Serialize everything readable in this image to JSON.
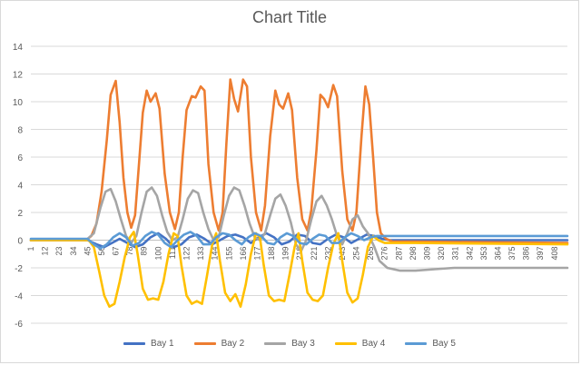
{
  "chart_data": {
    "type": "line",
    "title": "Chart Title",
    "xlabel": "",
    "ylabel": "",
    "ylim": [
      -6,
      14
    ],
    "yticks": [
      -6,
      -4,
      -2,
      0,
      2,
      4,
      6,
      8,
      10,
      12,
      14
    ],
    "x_range": [
      1,
      418
    ],
    "xtick_labels": [
      "1",
      "12",
      "23",
      "34",
      "45",
      "56",
      "67",
      "78",
      "89",
      "100",
      "111",
      "122",
      "133",
      "144",
      "155",
      "166",
      "177",
      "188",
      "199",
      "210",
      "221",
      "232",
      "243",
      "254",
      "265",
      "276",
      "287",
      "298",
      "309",
      "320",
      "331",
      "342",
      "353",
      "364",
      "375",
      "386",
      "397",
      "408"
    ],
    "grid": true,
    "legend_position": "bottom",
    "series": [
      {
        "name": "Bay 1",
        "color": "#4472c4",
        "points": [
          [
            1,
            0
          ],
          [
            45,
            0
          ],
          [
            52,
            -0.3
          ],
          [
            58,
            -0.5
          ],
          [
            64,
            -0.2
          ],
          [
            70,
            0.1
          ],
          [
            76,
            -0.2
          ],
          [
            82,
            -0.5
          ],
          [
            88,
            -0.3
          ],
          [
            94,
            0.2
          ],
          [
            100,
            0.5
          ],
          [
            106,
            0.1
          ],
          [
            112,
            -0.5
          ],
          [
            118,
            -0.3
          ],
          [
            124,
            0.2
          ],
          [
            130,
            0.4
          ],
          [
            136,
            0.1
          ],
          [
            142,
            -0.3
          ],
          [
            148,
            0
          ],
          [
            154,
            0.3
          ],
          [
            160,
            0.4
          ],
          [
            166,
            0.2
          ],
          [
            172,
            -0.2
          ],
          [
            178,
            0.2
          ],
          [
            184,
            0.5
          ],
          [
            190,
            0.2
          ],
          [
            196,
            -0.3
          ],
          [
            202,
            -0.1
          ],
          [
            208,
            0.4
          ],
          [
            214,
            0.3
          ],
          [
            220,
            -0.2
          ],
          [
            226,
            -0.3
          ],
          [
            232,
            0.1
          ],
          [
            238,
            0.4
          ],
          [
            244,
            0.2
          ],
          [
            250,
            -0.2
          ],
          [
            256,
            0.1
          ],
          [
            262,
            0.4
          ],
          [
            268,
            0.3
          ],
          [
            274,
            0.1
          ],
          [
            280,
            0
          ],
          [
            418,
            0
          ]
        ]
      },
      {
        "name": "Bay 2",
        "color": "#ed7d31",
        "points": [
          [
            1,
            0
          ],
          [
            44,
            0
          ],
          [
            48,
            0.3
          ],
          [
            52,
            1.2
          ],
          [
            56,
            3.5
          ],
          [
            60,
            7.2
          ],
          [
            63,
            10.5
          ],
          [
            67,
            11.5
          ],
          [
            70,
            8.5
          ],
          [
            73,
            4.5
          ],
          [
            76,
            2.0
          ],
          [
            79,
            0.9
          ],
          [
            82,
            1.8
          ],
          [
            85,
            5.5
          ],
          [
            88,
            9.2
          ],
          [
            91,
            10.8
          ],
          [
            94,
            10.0
          ],
          [
            98,
            10.6
          ],
          [
            101,
            9.5
          ],
          [
            105,
            4.8
          ],
          [
            109,
            2.0
          ],
          [
            113,
            0.8
          ],
          [
            116,
            2.0
          ],
          [
            119,
            6.0
          ],
          [
            122,
            9.4
          ],
          [
            126,
            10.4
          ],
          [
            129,
            10.3
          ],
          [
            133,
            11.1
          ],
          [
            136,
            10.8
          ],
          [
            139,
            5.5
          ],
          [
            143,
            2.0
          ],
          [
            147,
            0.7
          ],
          [
            150,
            2.0
          ],
          [
            153,
            7.0
          ],
          [
            156,
            11.6
          ],
          [
            159,
            10.2
          ],
          [
            162,
            9.3
          ],
          [
            166,
            11.6
          ],
          [
            169,
            11.1
          ],
          [
            172,
            6.0
          ],
          [
            176,
            2.0
          ],
          [
            180,
            0.7
          ],
          [
            183,
            2.5
          ],
          [
            187,
            7.5
          ],
          [
            191,
            10.8
          ],
          [
            194,
            9.8
          ],
          [
            197,
            9.5
          ],
          [
            201,
            10.6
          ],
          [
            204,
            9.4
          ],
          [
            208,
            4.5
          ],
          [
            212,
            1.5
          ],
          [
            216,
            0.7
          ],
          [
            219,
            2.2
          ],
          [
            223,
            6.5
          ],
          [
            226,
            10.5
          ],
          [
            229,
            10.2
          ],
          [
            232,
            9.6
          ],
          [
            236,
            11.2
          ],
          [
            239,
            10.4
          ],
          [
            243,
            5.0
          ],
          [
            247,
            1.5
          ],
          [
            251,
            0.7
          ],
          [
            254,
            2.0
          ],
          [
            258,
            7.5
          ],
          [
            261,
            11.1
          ],
          [
            264,
            9.8
          ],
          [
            267,
            6.0
          ],
          [
            270,
            2.0
          ],
          [
            273,
            0.5
          ],
          [
            277,
            0.1
          ],
          [
            282,
            -0.1
          ],
          [
            300,
            -0.1
          ],
          [
            418,
            -0.2
          ]
        ]
      },
      {
        "name": "Bay 3",
        "color": "#a5a5a5",
        "points": [
          [
            1,
            0
          ],
          [
            44,
            0
          ],
          [
            50,
            0.5
          ],
          [
            55,
            2.3
          ],
          [
            59,
            3.5
          ],
          [
            63,
            3.7
          ],
          [
            67,
            2.8
          ],
          [
            71,
            1.5
          ],
          [
            75,
            0.3
          ],
          [
            79,
            -0.2
          ],
          [
            83,
            0.3
          ],
          [
            87,
            2.0
          ],
          [
            91,
            3.5
          ],
          [
            95,
            3.8
          ],
          [
            99,
            3.2
          ],
          [
            103,
            1.8
          ],
          [
            107,
            0.6
          ],
          [
            111,
            0
          ],
          [
            115,
            0.2
          ],
          [
            119,
            1.5
          ],
          [
            123,
            3.0
          ],
          [
            127,
            3.6
          ],
          [
            131,
            3.4
          ],
          [
            135,
            2.0
          ],
          [
            139,
            0.8
          ],
          [
            143,
            0
          ],
          [
            147,
            0.2
          ],
          [
            151,
            1.8
          ],
          [
            155,
            3.2
          ],
          [
            159,
            3.8
          ],
          [
            163,
            3.6
          ],
          [
            167,
            2.5
          ],
          [
            171,
            1.2
          ],
          [
            175,
            0.2
          ],
          [
            179,
            0
          ],
          [
            183,
            0.5
          ],
          [
            187,
            1.8
          ],
          [
            191,
            3.0
          ],
          [
            195,
            3.3
          ],
          [
            199,
            2.5
          ],
          [
            203,
            1.3
          ],
          [
            207,
            -0.3
          ],
          [
            211,
            -0.8
          ],
          [
            215,
            0
          ],
          [
            219,
            1.5
          ],
          [
            223,
            2.8
          ],
          [
            227,
            3.2
          ],
          [
            231,
            2.5
          ],
          [
            235,
            1.5
          ],
          [
            239,
            0.3
          ],
          [
            243,
            -0.3
          ],
          [
            247,
            0.5
          ],
          [
            251,
            1.5
          ],
          [
            255,
            1.8
          ],
          [
            259,
            1.0
          ],
          [
            263,
            0.5
          ],
          [
            268,
            -0.5
          ],
          [
            272,
            -1.5
          ],
          [
            278,
            -2.0
          ],
          [
            288,
            -2.2
          ],
          [
            300,
            -2.2
          ],
          [
            315,
            -2.1
          ],
          [
            330,
            -2.0
          ],
          [
            350,
            -2.0
          ],
          [
            380,
            -2.0
          ],
          [
            400,
            -2.0
          ],
          [
            418,
            -2.0
          ]
        ]
      },
      {
        "name": "Bay 4",
        "color": "#ffc000",
        "points": [
          [
            1,
            0
          ],
          [
            46,
            0
          ],
          [
            50,
            -0.5
          ],
          [
            54,
            -2.2
          ],
          [
            58,
            -4.0
          ],
          [
            62,
            -4.8
          ],
          [
            66,
            -4.6
          ],
          [
            70,
            -3.0
          ],
          [
            74,
            -1.2
          ],
          [
            78,
            0.2
          ],
          [
            81,
            0.6
          ],
          [
            84,
            -1.0
          ],
          [
            88,
            -3.5
          ],
          [
            92,
            -4.3
          ],
          [
            96,
            -4.2
          ],
          [
            100,
            -4.3
          ],
          [
            104,
            -3.0
          ],
          [
            108,
            -1.0
          ],
          [
            112,
            0.5
          ],
          [
            115,
            0.3
          ],
          [
            118,
            -1.8
          ],
          [
            122,
            -4.0
          ],
          [
            126,
            -4.6
          ],
          [
            130,
            -4.4
          ],
          [
            134,
            -4.6
          ],
          [
            138,
            -2.5
          ],
          [
            142,
            -0.3
          ],
          [
            145,
            0.5
          ],
          [
            148,
            -1.5
          ],
          [
            152,
            -3.8
          ],
          [
            156,
            -4.4
          ],
          [
            160,
            -3.9
          ],
          [
            164,
            -4.8
          ],
          [
            168,
            -3.2
          ],
          [
            172,
            -1.0
          ],
          [
            176,
            0.5
          ],
          [
            179,
            0.2
          ],
          [
            182,
            -1.8
          ],
          [
            186,
            -4.0
          ],
          [
            190,
            -4.4
          ],
          [
            194,
            -4.3
          ],
          [
            198,
            -4.4
          ],
          [
            202,
            -2.5
          ],
          [
            206,
            -0.5
          ],
          [
            209,
            0.5
          ],
          [
            212,
            -1.5
          ],
          [
            216,
            -3.8
          ],
          [
            220,
            -4.3
          ],
          [
            224,
            -4.4
          ],
          [
            228,
            -4.0
          ],
          [
            232,
            -2.0
          ],
          [
            236,
            -0.3
          ],
          [
            240,
            0.5
          ],
          [
            243,
            -1.5
          ],
          [
            247,
            -3.8
          ],
          [
            251,
            -4.5
          ],
          [
            255,
            -4.2
          ],
          [
            259,
            -2.5
          ],
          [
            263,
            -0.5
          ],
          [
            267,
            0.3
          ],
          [
            271,
            0
          ],
          [
            276,
            -0.2
          ],
          [
            300,
            -0.2
          ],
          [
            418,
            -0.3
          ]
        ]
      },
      {
        "name": "Bay 5",
        "color": "#5b9bd5",
        "points": [
          [
            1,
            0.1
          ],
          [
            45,
            0.1
          ],
          [
            50,
            -0.3
          ],
          [
            55,
            -0.6
          ],
          [
            60,
            -0.3
          ],
          [
            65,
            0.2
          ],
          [
            70,
            0.5
          ],
          [
            75,
            0.2
          ],
          [
            80,
            -0.4
          ],
          [
            85,
            -0.2
          ],
          [
            90,
            0.3
          ],
          [
            95,
            0.6
          ],
          [
            100,
            0.4
          ],
          [
            105,
            -0.2
          ],
          [
            110,
            -0.5
          ],
          [
            115,
            0
          ],
          [
            120,
            0.4
          ],
          [
            125,
            0.6
          ],
          [
            130,
            0.3
          ],
          [
            135,
            -0.3
          ],
          [
            140,
            -0.3
          ],
          [
            145,
            0.2
          ],
          [
            150,
            0.5
          ],
          [
            155,
            0.4
          ],
          [
            160,
            0
          ],
          [
            165,
            -0.3
          ],
          [
            170,
            0.2
          ],
          [
            175,
            0.5
          ],
          [
            180,
            0.3
          ],
          [
            185,
            -0.2
          ],
          [
            190,
            -0.3
          ],
          [
            195,
            0.2
          ],
          [
            200,
            0.5
          ],
          [
            205,
            0.3
          ],
          [
            210,
            -0.2
          ],
          [
            215,
            -0.3
          ],
          [
            220,
            0.1
          ],
          [
            225,
            0.4
          ],
          [
            230,
            0.3
          ],
          [
            235,
            -0.2
          ],
          [
            240,
            -0.2
          ],
          [
            245,
            0.2
          ],
          [
            250,
            0.5
          ],
          [
            255,
            0.3
          ],
          [
            260,
            0
          ],
          [
            265,
            0.2
          ],
          [
            270,
            0.3
          ],
          [
            280,
            0.3
          ],
          [
            300,
            0.3
          ],
          [
            418,
            0.3
          ]
        ]
      }
    ]
  }
}
